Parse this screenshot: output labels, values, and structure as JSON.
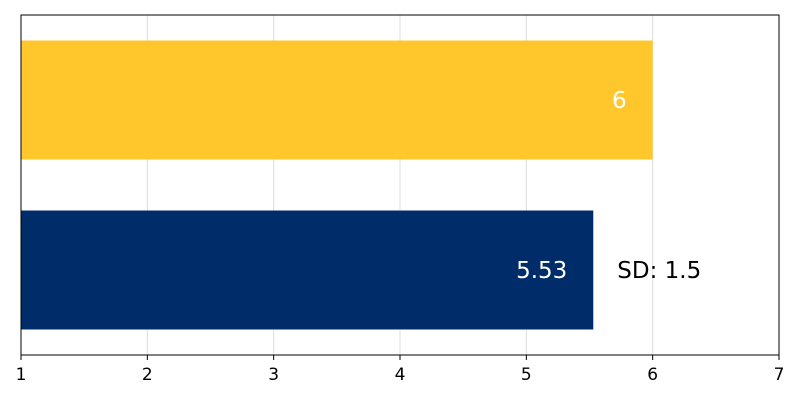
{
  "chart_data": {
    "type": "bar",
    "orientation": "horizontal",
    "title": "",
    "xlabel": "",
    "ylabel": "",
    "xlim": [
      1,
      7
    ],
    "xticks": [
      1,
      2,
      3,
      4,
      5,
      6,
      7
    ],
    "grid": "vertical",
    "legend": "none",
    "bars": [
      {
        "value": 6,
        "value_label": "6",
        "color": "#FFC72C",
        "annotation": ""
      },
      {
        "value": 5.53,
        "value_label": "5.53",
        "color": "#002D6A",
        "annotation": "SD: 1.5"
      }
    ]
  }
}
